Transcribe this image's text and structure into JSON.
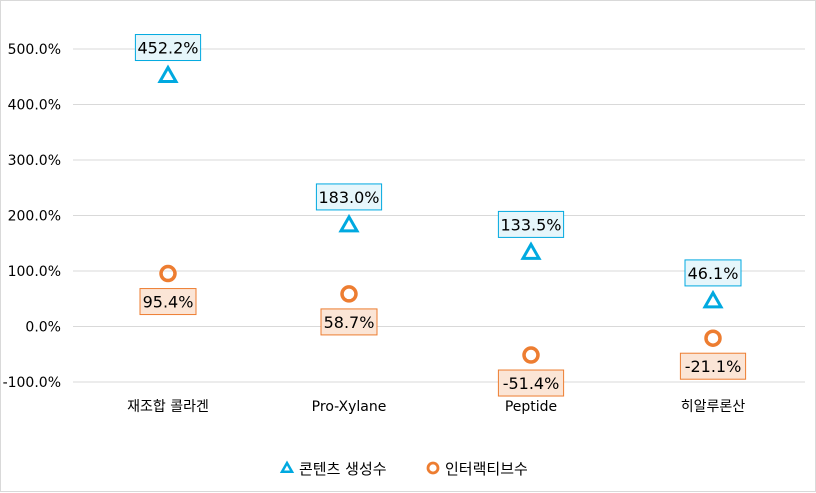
{
  "chart_data": {
    "type": "scatter",
    "categories": [
      "재조합 콜라겐",
      "Pro-Xylane",
      "Peptide",
      "히알루론산"
    ],
    "y_ticks": [
      "-100.0%",
      "0.0%",
      "100.0%",
      "200.0%",
      "300.0%",
      "400.0%",
      "500.0%"
    ],
    "ylim": [
      -100,
      500
    ],
    "grid": true,
    "legend_position": "bottom",
    "series": [
      {
        "name": "콘텐츠 생성수",
        "marker": "triangle",
        "color": "#00a9e0",
        "label_fill": "#e6f6fb",
        "values": [
          452.2,
          183.0,
          133.5,
          46.1
        ],
        "labels": [
          "452.2%",
          "183.0%",
          "133.5%",
          "46.1%"
        ]
      },
      {
        "name": "인터랙티브수",
        "marker": "circle",
        "color": "#ed7d31",
        "label_fill": "#fbe5d6",
        "values": [
          95.4,
          58.7,
          -51.4,
          -21.1
        ],
        "labels": [
          "95.4%",
          "58.7%",
          "-51.4%",
          "-21.1%"
        ]
      }
    ]
  }
}
